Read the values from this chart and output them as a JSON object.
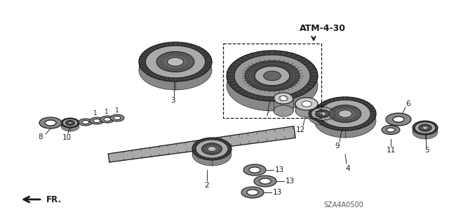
{
  "bg_color": "#ffffff",
  "lc": "#1a1a1a",
  "gray": "#888888",
  "hatch_color": "#555555",
  "ref_label": "ATM-4-30",
  "part_code": "SZA4A0500",
  "fr_label": "FR.",
  "figw": 6.4,
  "figh": 3.19,
  "dpi": 100
}
